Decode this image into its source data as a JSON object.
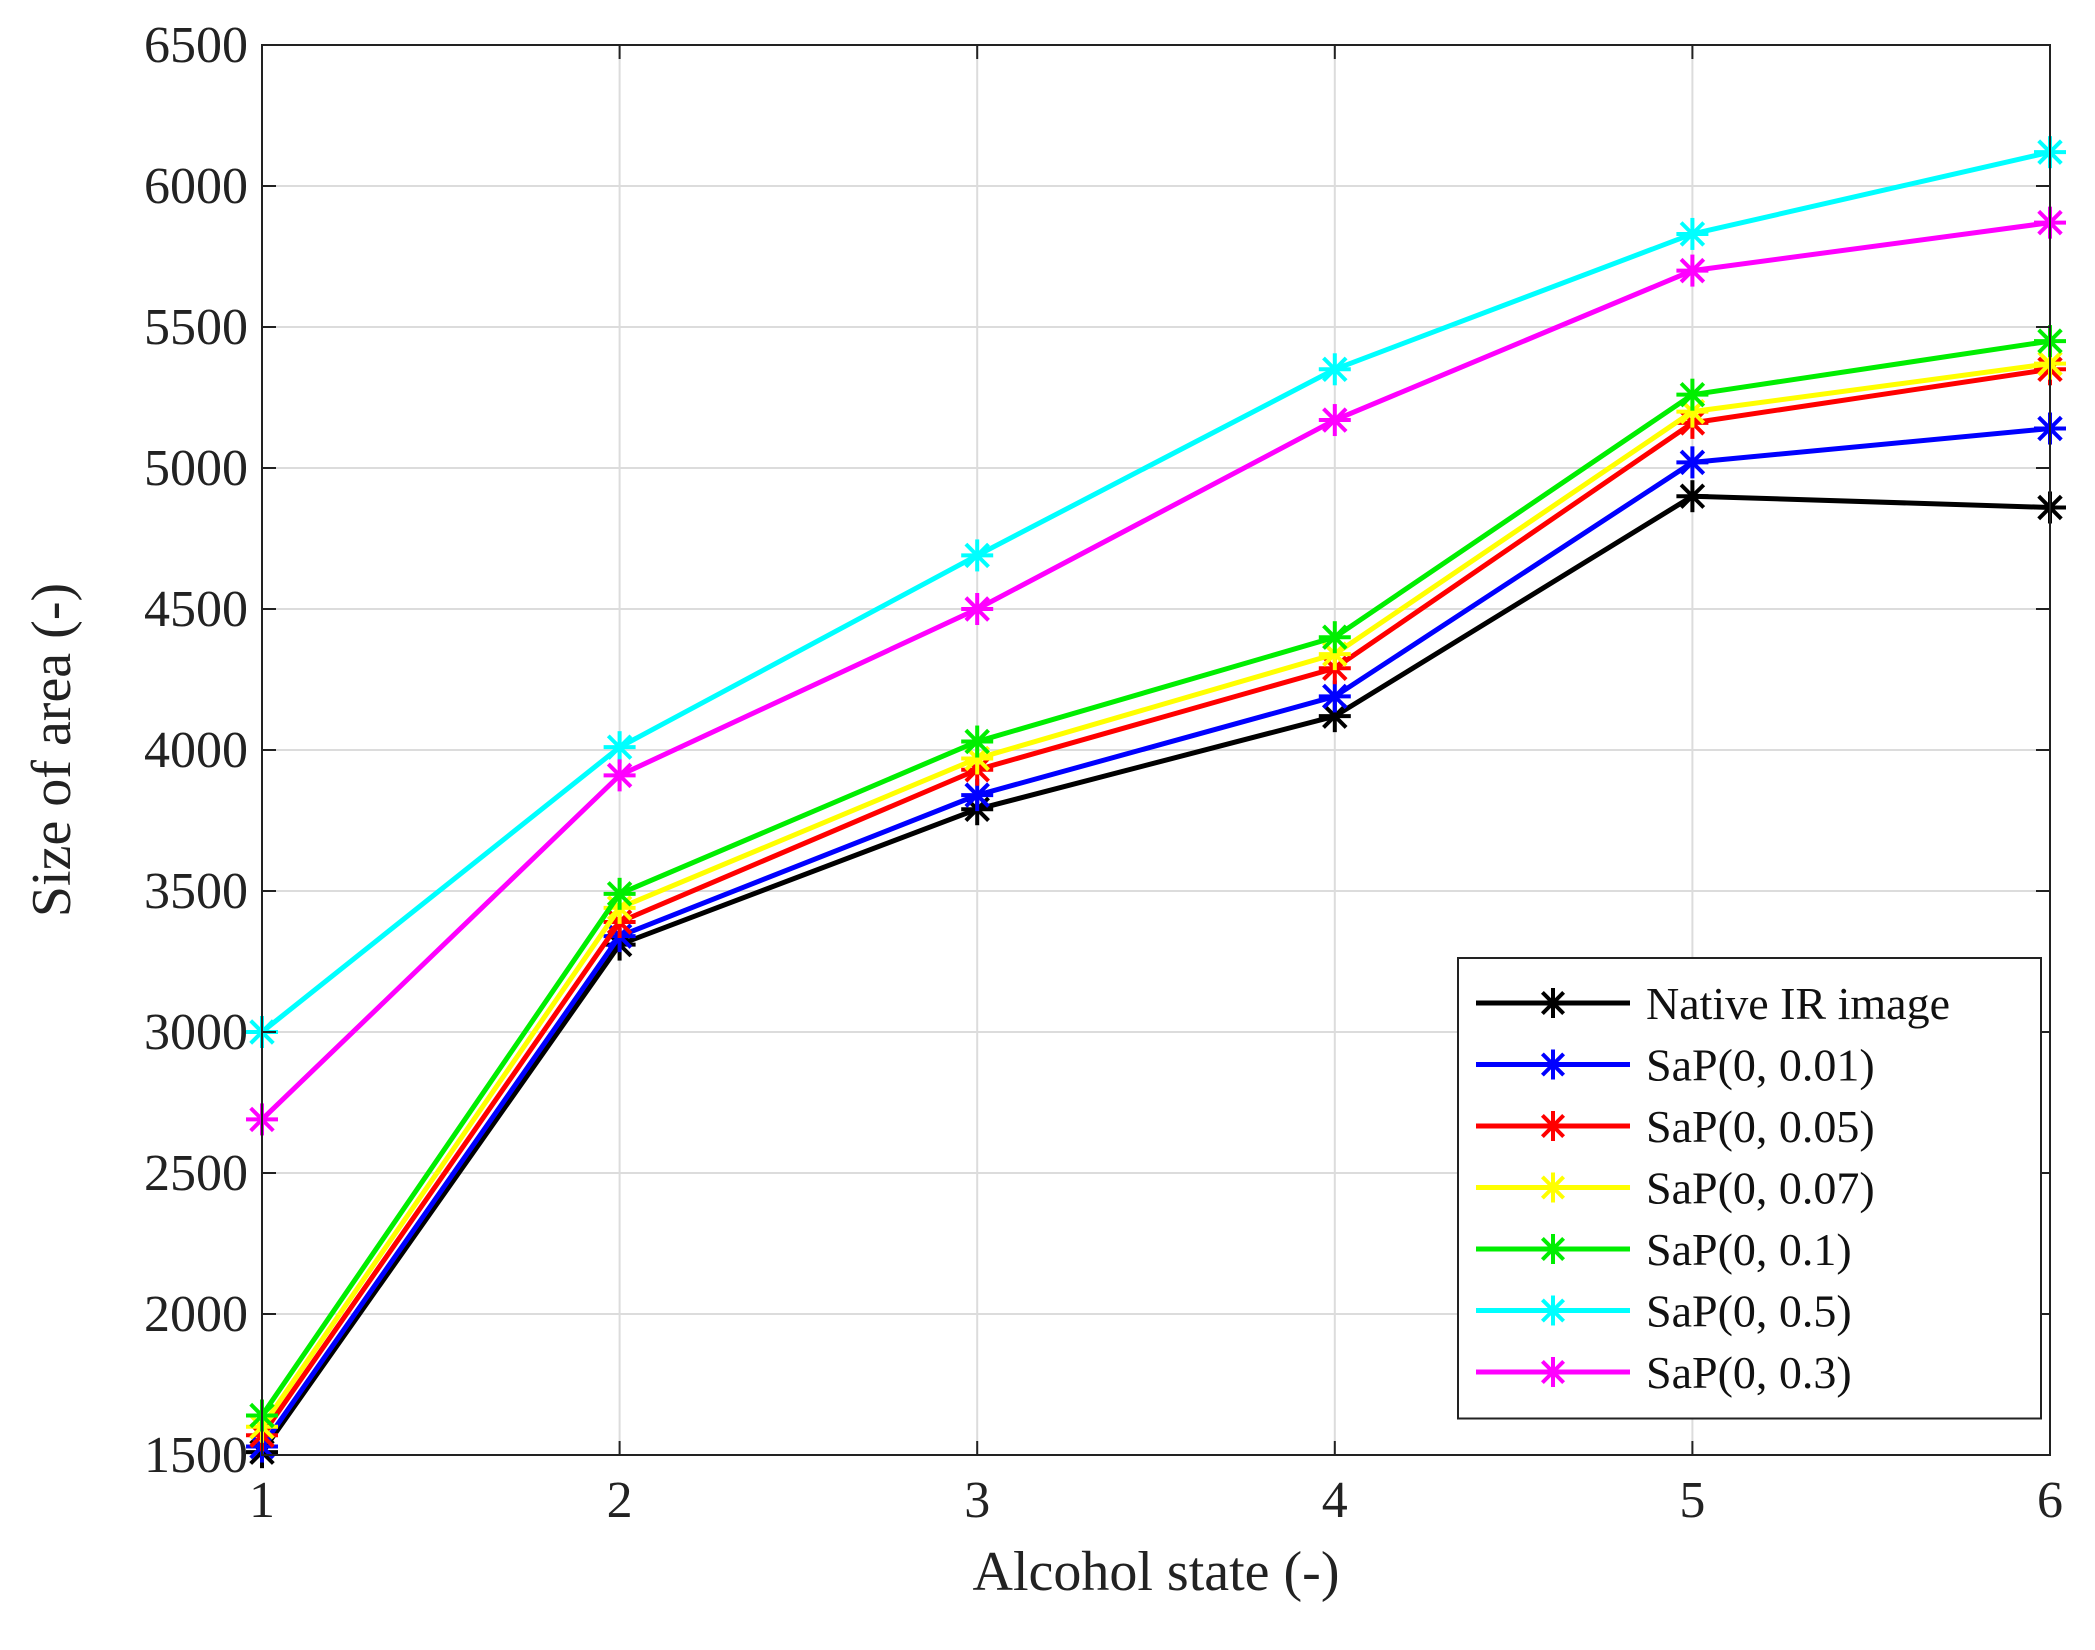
{
  "chart_data": {
    "type": "line",
    "title": "",
    "xlabel": "Alcohol state (-)",
    "ylabel": "Size of area (-)",
    "x": [
      1,
      2,
      3,
      4,
      5,
      6
    ],
    "xlim": [
      1,
      6
    ],
    "ylim": [
      1500,
      6500
    ],
    "xticks": [
      "1",
      "2",
      "3",
      "4",
      "5",
      "6"
    ],
    "yticks": [
      "1500",
      "2000",
      "2500",
      "3000",
      "3500",
      "4000",
      "4500",
      "5000",
      "5500",
      "6000",
      "6500"
    ],
    "grid": true,
    "legend_position": "bottom-right",
    "series": [
      {
        "name": "Native IR image",
        "color": "#000000",
        "values": [
          1510,
          3310,
          3790,
          4120,
          4900,
          4860
        ]
      },
      {
        "name": "SaP(0, 0.01)",
        "color": "#0000ff",
        "values": [
          1530,
          3340,
          3840,
          4190,
          5020,
          5140
        ]
      },
      {
        "name": "SaP(0, 0.05)",
        "color": "#ff0000",
        "values": [
          1570,
          3390,
          3930,
          4290,
          5160,
          5350
        ]
      },
      {
        "name": "SaP(0, 0.07)",
        "color": "#ffff00",
        "values": [
          1600,
          3440,
          3970,
          4340,
          5200,
          5370
        ]
      },
      {
        "name": "SaP(0, 0.1)",
        "color": "#00ee00",
        "values": [
          1640,
          3490,
          4030,
          4400,
          5260,
          5450
        ]
      },
      {
        "name": "SaP(0, 0.5)",
        "color": "#00ffff",
        "values": [
          3000,
          4010,
          4690,
          5350,
          5830,
          6120
        ]
      },
      {
        "name": "SaP(0, 0.3)",
        "color": "#ff00ff",
        "values": [
          2690,
          3910,
          4500,
          5170,
          5700,
          5870
        ]
      }
    ]
  }
}
